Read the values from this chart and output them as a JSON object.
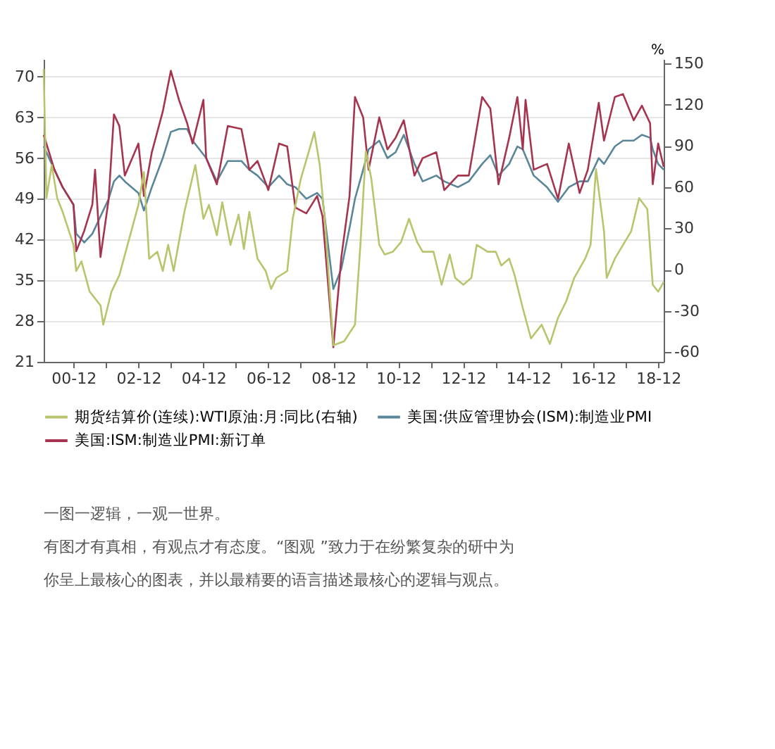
{
  "chart_data": {
    "type": "line",
    "y2label": "%",
    "legend": "bottom",
    "grid": "y",
    "marker": "none",
    "line_style": "solid",
    "xlim": [
      "2000-01",
      "2019-02"
    ],
    "xticks": [
      {
        "value": "2000-12",
        "label": "00-12"
      },
      {
        "value": "2001-12",
        "label": null
      },
      {
        "value": "2002-12",
        "label": "02-12"
      },
      {
        "value": "2003-12",
        "label": null
      },
      {
        "value": "2004-12",
        "label": "04-12"
      },
      {
        "value": "2005-12",
        "label": null
      },
      {
        "value": "2006-12",
        "label": "06-12"
      },
      {
        "value": "2007-12",
        "label": null
      },
      {
        "value": "2008-12",
        "label": "08-12"
      },
      {
        "value": "2009-12",
        "label": null
      },
      {
        "value": "2010-12",
        "label": "10-12"
      },
      {
        "value": "2011-12",
        "label": null
      },
      {
        "value": "2012-12",
        "label": "12-12"
      },
      {
        "value": "2013-12",
        "label": null
      },
      {
        "value": "2014-12",
        "label": "14-12"
      },
      {
        "value": "2015-12",
        "label": null
      },
      {
        "value": "2016-12",
        "label": "16-12"
      },
      {
        "value": "2017-12",
        "label": null
      },
      {
        "value": "2018-12",
        "label": "18-12"
      }
    ],
    "ylim": [
      21,
      73
    ],
    "yticks": [
      21,
      28,
      35,
      42,
      49,
      56,
      63,
      70
    ],
    "y2lim": [
      -67,
      153
    ],
    "y2ticks": [
      -60,
      -30,
      0,
      30,
      60,
      90,
      120,
      150
    ],
    "series": [
      {
        "name": "期货结算价(连续):WTI原油:月:同比(右轴)",
        "color": "#b9c46c",
        "axis": "y2",
        "x": [
          "2000-01",
          "2000-02",
          "2000-04",
          "2000-06",
          "2000-08",
          "2000-12",
          "2001-01",
          "2001-03",
          "2001-06",
          "2001-10",
          "2001-11",
          "2002-02",
          "2002-05",
          "2002-08",
          "2002-12",
          "2003-02",
          "2003-04",
          "2003-07",
          "2003-09",
          "2003-11",
          "2004-01",
          "2004-05",
          "2004-09",
          "2004-12",
          "2005-02",
          "2005-05",
          "2005-07",
          "2005-10",
          "2006-01",
          "2006-03",
          "2006-05",
          "2006-08",
          "2006-11",
          "2007-01",
          "2007-03",
          "2007-07",
          "2007-09",
          "2007-12",
          "2008-03",
          "2008-05",
          "2008-07",
          "2008-09",
          "2008-12",
          "2009-04",
          "2009-08",
          "2009-10",
          "2009-12",
          "2010-02",
          "2010-05",
          "2010-07",
          "2010-10",
          "2011-01",
          "2011-04",
          "2011-07",
          "2011-09",
          "2012-01",
          "2012-04",
          "2012-07",
          "2012-09",
          "2012-12",
          "2013-03",
          "2013-05",
          "2013-09",
          "2013-12",
          "2014-02",
          "2014-05",
          "2014-07",
          "2014-10",
          "2015-01",
          "2015-05",
          "2015-08",
          "2015-11",
          "2016-02",
          "2016-05",
          "2016-09",
          "2016-11",
          "2017-01",
          "2017-04",
          "2017-05",
          "2017-08",
          "2017-11",
          "2018-02",
          "2018-05",
          "2018-08",
          "2018-10",
          "2018-12",
          "2019-02"
        ],
        "values": [
          146,
          52,
          76,
          52,
          42,
          18,
          -1,
          6,
          -16,
          -26,
          -40,
          -16,
          -4,
          18,
          47,
          71,
          8,
          13,
          -1,
          18,
          -1,
          42,
          76,
          37,
          47,
          25,
          49,
          18,
          40,
          15,
          42,
          8,
          -1,
          -14,
          -6,
          -1,
          37,
          66,
          86,
          100,
          76,
          32,
          -55,
          -52,
          -40,
          18,
          86,
          66,
          18,
          11,
          13,
          20,
          37,
          20,
          13,
          13,
          -11,
          11,
          -6,
          -11,
          -6,
          18,
          13,
          13,
          3,
          8,
          -4,
          -28,
          -50,
          -40,
          -54,
          -35,
          -23,
          -6,
          8,
          18,
          73,
          28,
          -6,
          8,
          18,
          28,
          52,
          44,
          -11,
          -16,
          -9
        ]
      },
      {
        "name": "美国:供应管理协会(ISM):制造业PMI",
        "color": "#5a8699",
        "x": [
          "2000-01",
          "2000-05",
          "2000-08",
          "2000-12",
          "2001-01",
          "2001-04",
          "2001-07",
          "2001-10",
          "2002-01",
          "2002-03",
          "2002-05",
          "2002-07",
          "2002-12",
          "2003-02",
          "2003-05",
          "2003-09",
          "2003-12",
          "2004-03",
          "2004-06",
          "2004-08",
          "2005-01",
          "2005-05",
          "2005-09",
          "2006-02",
          "2006-05",
          "2006-08",
          "2006-12",
          "2007-04",
          "2007-07",
          "2007-10",
          "2008-02",
          "2008-06",
          "2008-08",
          "2008-12",
          "2009-03",
          "2009-06",
          "2009-08",
          "2009-11",
          "2010-01",
          "2010-05",
          "2010-08",
          "2010-11",
          "2011-02",
          "2011-06",
          "2011-09",
          "2012-02",
          "2012-05",
          "2012-10",
          "2013-02",
          "2013-07",
          "2013-10",
          "2014-01",
          "2014-05",
          "2014-08",
          "2014-10",
          "2015-02",
          "2015-07",
          "2015-11",
          "2016-03",
          "2016-07",
          "2016-10",
          "2017-02",
          "2017-04",
          "2017-08",
          "2017-11",
          "2018-03",
          "2018-06",
          "2018-09",
          "2018-10",
          "2018-12",
          "2019-02"
        ],
        "values": [
          58,
          54,
          51,
          48,
          43,
          41.5,
          43,
          46,
          49,
          52,
          53,
          52,
          50,
          47,
          51,
          56,
          60.5,
          61,
          61,
          59,
          56,
          52,
          55.5,
          55.5,
          54,
          53,
          51,
          53,
          51.5,
          51,
          49,
          50,
          49,
          33.5,
          37,
          44,
          49,
          54,
          57.5,
          59,
          56,
          57,
          60,
          55,
          52,
          53,
          52,
          51,
          52,
          55,
          56.5,
          53,
          55,
          58,
          57.5,
          53,
          51,
          48.5,
          51,
          52,
          52,
          56,
          55,
          58,
          59,
          59,
          60,
          59.5,
          57.5,
          55,
          54
        ]
      },
      {
        "name": "美国:ISM:制造业PMI:新订单",
        "color": "#a6344f",
        "x": [
          "2000-01",
          "2000-05",
          "2000-08",
          "2000-12",
          "2001-01",
          "2001-04",
          "2001-07",
          "2001-08",
          "2001-10",
          "2002-01",
          "2002-03",
          "2002-05",
          "2002-07",
          "2002-12",
          "2003-02",
          "2003-05",
          "2003-09",
          "2003-12",
          "2004-03",
          "2004-06",
          "2004-08",
          "2004-12",
          "2005-01",
          "2005-05",
          "2005-09",
          "2006-02",
          "2006-05",
          "2006-08",
          "2006-12",
          "2007-04",
          "2007-07",
          "2007-10",
          "2008-02",
          "2008-06",
          "2008-08",
          "2008-12",
          "2009-03",
          "2009-06",
          "2009-08",
          "2009-11",
          "2010-01",
          "2010-05",
          "2010-08",
          "2010-11",
          "2011-02",
          "2011-06",
          "2011-09",
          "2012-02",
          "2012-05",
          "2012-10",
          "2013-02",
          "2013-07",
          "2013-10",
          "2014-01",
          "2014-05",
          "2014-08",
          "2014-10",
          "2014-11",
          "2015-02",
          "2015-07",
          "2015-11",
          "2016-03",
          "2016-07",
          "2016-10",
          "2017-02",
          "2017-04",
          "2017-08",
          "2017-11",
          "2018-03",
          "2018-06",
          "2018-09",
          "2018-10",
          "2018-12",
          "2019-02"
        ],
        "values": [
          60,
          54,
          51,
          48,
          40,
          43.5,
          48,
          54,
          39,
          49,
          63.5,
          61.5,
          53,
          58.5,
          49.5,
          57,
          64,
          71,
          66,
          62,
          58.5,
          66,
          56,
          51.5,
          61.5,
          61,
          54,
          55.5,
          50.5,
          58.5,
          58,
          47.5,
          46.5,
          49.5,
          46,
          23.5,
          39,
          49.5,
          66.5,
          63,
          54,
          63,
          57.5,
          59.5,
          62.5,
          53,
          56,
          57,
          50.5,
          53,
          53,
          66.5,
          64.5,
          51.5,
          59.5,
          66.5,
          57.5,
          66,
          54,
          55,
          49,
          58.5,
          50,
          54,
          65.5,
          59,
          66.5,
          67,
          62.5,
          65,
          62,
          51.5,
          58.5,
          54.5
        ]
      }
    ],
    "annotations": [
      "一图一逻辑，一观一世界。",
      "有图才有真相，有观点才有态度。“图观 ”致力于在纷繁复杂的研中为",
      "你呈上最核心的图表，并以最精要的语言描述最核心的逻辑与观点。"
    ]
  }
}
